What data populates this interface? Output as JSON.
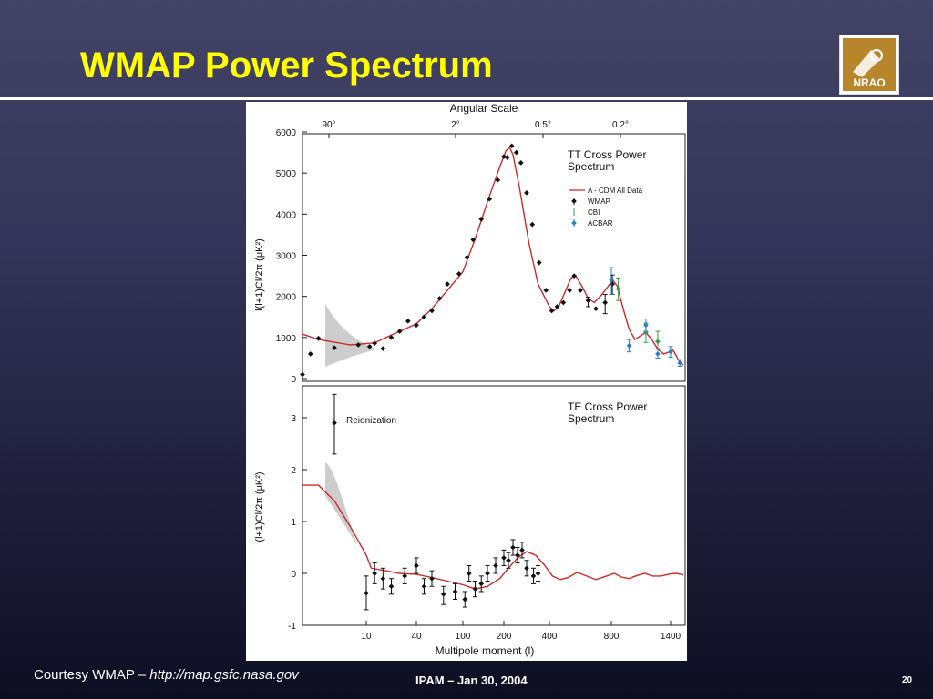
{
  "slide": {
    "title": "WMAP Power Spectrum",
    "footer_credit_prefix": "Courtesy WMAP – ",
    "footer_credit_url": "http://map.gsfc.nasa.gov",
    "footer_center": "IPAM – Jan 30, 2004",
    "page_number": "20",
    "logo_text": "NRAO"
  },
  "colors": {
    "title": "#ffff00",
    "model_curve": "#cc2b2b",
    "band": "#c8c8c8",
    "wmap": "#111111",
    "cbi": "#3a9a4a",
    "acbar": "#2a7fc0"
  },
  "chart_data": [
    {
      "type": "scatter",
      "title": "TT Cross Power Spectrum",
      "title_lines": [
        "TT Cross Power",
        "Spectrum"
      ],
      "top_axis_label": "Angular Scale",
      "top_ticks": [
        "90°",
        "2°",
        "0.5°",
        "0.2°"
      ],
      "ylabel": "l(l+1)Cl/2π (μK²)",
      "ylim": [
        0,
        6000
      ],
      "yticks": [
        0,
        1000,
        2000,
        3000,
        4000,
        5000,
        6000
      ],
      "xscale": "log-like multipole",
      "legend": {
        "placement": "top-right",
        "entries": [
          "Λ - CDM All Data",
          "WMAP",
          "CBI",
          "ACBAR"
        ]
      },
      "model": {
        "name": "Λ - CDM All Data",
        "points": [
          [
            2,
            1080
          ],
          [
            4,
            950
          ],
          [
            8,
            820
          ],
          [
            15,
            870
          ],
          [
            25,
            1060
          ],
          [
            40,
            1330
          ],
          [
            60,
            1700
          ],
          [
            80,
            2150
          ],
          [
            100,
            2600
          ],
          [
            130,
            3400
          ],
          [
            160,
            4300
          ],
          [
            190,
            5150
          ],
          [
            210,
            5550
          ],
          [
            225,
            5620
          ],
          [
            240,
            5450
          ],
          [
            270,
            4600
          ],
          [
            310,
            3300
          ],
          [
            350,
            2300
          ],
          [
            400,
            1750
          ],
          [
            430,
            1650
          ],
          [
            460,
            1750
          ],
          [
            500,
            2100
          ],
          [
            540,
            2450
          ],
          [
            570,
            2500
          ],
          [
            610,
            2250
          ],
          [
            650,
            1950
          ],
          [
            690,
            1850
          ],
          [
            740,
            2050
          ],
          [
            790,
            2300
          ],
          [
            820,
            2380
          ],
          [
            860,
            2250
          ],
          [
            920,
            1700
          ],
          [
            980,
            1200
          ],
          [
            1040,
            950
          ],
          [
            1100,
            1050
          ],
          [
            1150,
            1120
          ],
          [
            1210,
            950
          ],
          [
            1270,
            720
          ],
          [
            1330,
            600
          ],
          [
            1390,
            650
          ],
          [
            1440,
            700
          ],
          [
            1500,
            550
          ],
          [
            1560,
            390
          ],
          [
            1620,
            330
          ]
        ]
      },
      "series": [
        {
          "name": "WMAP",
          "points": [
            [
              2,
              100
            ],
            [
              3,
              600
            ],
            [
              4,
              980
            ],
            [
              6,
              750
            ],
            [
              9,
              820
            ],
            [
              12,
              780
            ],
            [
              15,
              860
            ],
            [
              20,
              730
            ],
            [
              25,
              1000
            ],
            [
              30,
              1150
            ],
            [
              35,
              1400
            ],
            [
              40,
              1300
            ],
            [
              50,
              1500
            ],
            [
              60,
              1650
            ],
            [
              70,
              1950
            ],
            [
              80,
              2300
            ],
            [
              95,
              2550
            ],
            [
              110,
              2950
            ],
            [
              125,
              3380
            ],
            [
              145,
              3880
            ],
            [
              165,
              4370
            ],
            [
              185,
              4830
            ],
            [
              200,
              5400
            ],
            [
              215,
              5380
            ],
            [
              235,
              5660
            ],
            [
              255,
              5500
            ],
            [
              275,
              5250
            ],
            [
              300,
              4520
            ],
            [
              325,
              3750
            ],
            [
              355,
              2820
            ],
            [
              385,
              2150
            ],
            [
              415,
              1650
            ],
            [
              450,
              1750
            ],
            [
              490,
              1850
            ],
            [
              530,
              2150
            ],
            [
              560,
              2500
            ],
            [
              600,
              2150
            ],
            [
              650,
              1900
            ],
            [
              700,
              1700
            ],
            [
              760,
              1850
            ],
            [
              810,
              2300
            ]
          ],
          "error_points": [
            [
              650,
              1750,
              1980
            ],
            [
              760,
              1580,
              2050
            ],
            [
              810,
              2050,
              2520
            ]
          ]
        },
        {
          "name": "CBI",
          "points": [
            [
              870,
              2180
            ],
            [
              1150,
              1120
            ],
            [
              1270,
              900
            ]
          ],
          "errors": [
            [
              870,
              1900,
              2450
            ],
            [
              1150,
              880,
              1350
            ],
            [
              1270,
              600,
              1150
            ]
          ]
        },
        {
          "name": "ACBAR",
          "points": [
            [
              800,
              2400
            ],
            [
              980,
              800
            ],
            [
              1150,
              1300
            ],
            [
              1270,
              600
            ],
            [
              1400,
              650
            ],
            [
              1560,
              380
            ]
          ],
          "errors": [
            [
              800,
              2050,
              2700
            ],
            [
              980,
              650,
              950
            ],
            [
              1150,
              1150,
              1450
            ],
            [
              1270,
              500,
              730
            ],
            [
              1400,
              520,
              780
            ],
            [
              1560,
              300,
              460
            ]
          ]
        }
      ]
    },
    {
      "type": "scatter",
      "title": "TE Cross Power Spectrum",
      "title_lines": [
        "TE Cross Power",
        "Spectrum"
      ],
      "annotation": "Reionization",
      "ylabel": "(l+1)Cl/2π (μK²)",
      "xlabel": "Multipole moment (l)",
      "xticks": [
        "10",
        "40",
        "100",
        "200",
        "400",
        "800",
        "1400"
      ],
      "ylim": [
        -1,
        3.6
      ],
      "yticks": [
        -1,
        0,
        1,
        2,
        3
      ],
      "model": {
        "name": "Λ - CDM",
        "points": [
          [
            2,
            1.7
          ],
          [
            4,
            1.7
          ],
          [
            6,
            1.4
          ],
          [
            8,
            0.9
          ],
          [
            10,
            0.35
          ],
          [
            13,
            0.1
          ],
          [
            20,
            0.06
          ],
          [
            30,
            0.0
          ],
          [
            40,
            -0.02
          ],
          [
            60,
            -0.08
          ],
          [
            80,
            -0.15
          ],
          [
            100,
            -0.22
          ],
          [
            130,
            -0.3
          ],
          [
            160,
            -0.25
          ],
          [
            190,
            -0.1
          ],
          [
            220,
            0.1
          ],
          [
            260,
            0.3
          ],
          [
            300,
            0.42
          ],
          [
            340,
            0.35
          ],
          [
            380,
            0.15
          ],
          [
            420,
            -0.05
          ],
          [
            470,
            -0.12
          ],
          [
            520,
            -0.08
          ],
          [
            580,
            0.02
          ],
          [
            640,
            -0.05
          ],
          [
            700,
            -0.12
          ],
          [
            760,
            -0.06
          ],
          [
            830,
            0.0
          ],
          [
            900,
            -0.07
          ],
          [
            980,
            -0.1
          ],
          [
            1060,
            -0.04
          ],
          [
            1140,
            0.0
          ],
          [
            1220,
            -0.05
          ],
          [
            1300,
            -0.05
          ],
          [
            1400,
            -0.01
          ],
          [
            1500,
            0.0
          ],
          [
            1620,
            -0.03
          ]
        ]
      },
      "series": [
        {
          "name": "WMAP",
          "points": [
            [
              6,
              2.9
            ],
            [
              10,
              -0.38
            ],
            [
              15,
              0.0
            ],
            [
              20,
              -0.1
            ],
            [
              25,
              -0.25
            ],
            [
              33,
              -0.05
            ],
            [
              40,
              0.15
            ],
            [
              50,
              -0.25
            ],
            [
              60,
              -0.1
            ],
            [
              75,
              -0.4
            ],
            [
              90,
              -0.35
            ],
            [
              105,
              -0.5
            ],
            [
              115,
              0.0
            ],
            [
              130,
              -0.3
            ],
            [
              145,
              -0.2
            ],
            [
              160,
              0.0
            ],
            [
              180,
              0.15
            ],
            [
              200,
              0.3
            ],
            [
              220,
              0.25
            ],
            [
              240,
              0.5
            ],
            [
              260,
              0.35
            ],
            [
              280,
              0.45
            ],
            [
              300,
              0.1
            ],
            [
              330,
              -0.05
            ],
            [
              350,
              0.0
            ]
          ],
          "errors": [
            [
              6,
              2.3,
              3.45
            ],
            [
              10,
              -0.7,
              -0.05
            ],
            [
              15,
              -0.2,
              0.2
            ],
            [
              20,
              -0.3,
              0.1
            ],
            [
              25,
              -0.4,
              -0.1
            ],
            [
              33,
              -0.2,
              0.1
            ],
            [
              40,
              0.0,
              0.3
            ],
            [
              50,
              -0.4,
              -0.1
            ],
            [
              60,
              -0.25,
              0.05
            ],
            [
              75,
              -0.6,
              -0.25
            ],
            [
              90,
              -0.5,
              -0.2
            ],
            [
              105,
              -0.65,
              -0.35
            ],
            [
              115,
              -0.15,
              0.15
            ],
            [
              130,
              -0.45,
              -0.15
            ],
            [
              145,
              -0.35,
              -0.05
            ],
            [
              160,
              -0.15,
              0.15
            ],
            [
              180,
              0.0,
              0.3
            ],
            [
              200,
              0.15,
              0.45
            ],
            [
              220,
              0.1,
              0.4
            ],
            [
              240,
              0.35,
              0.65
            ],
            [
              260,
              0.2,
              0.5
            ],
            [
              280,
              0.3,
              0.6
            ],
            [
              300,
              -0.05,
              0.25
            ],
            [
              330,
              -0.2,
              0.1
            ],
            [
              350,
              -0.15,
              0.15
            ]
          ]
        }
      ]
    }
  ]
}
